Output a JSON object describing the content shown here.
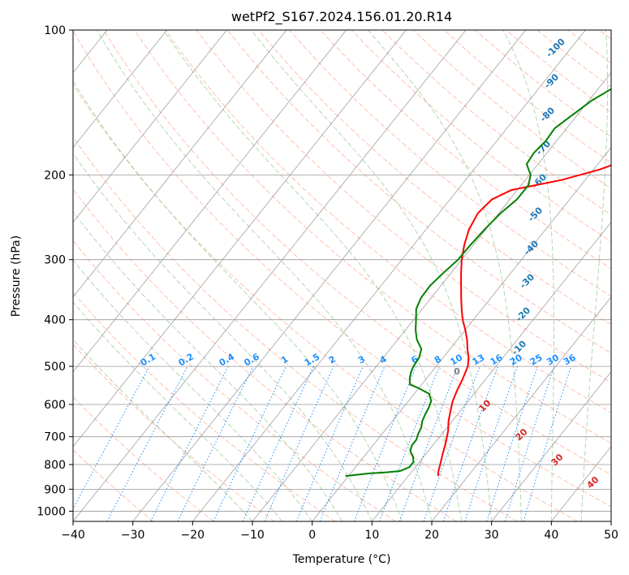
{
  "chart_data": {
    "type": "line",
    "subtype": "skew-T log-P diagram",
    "title": "wetPf2_S167.2024.156.01.20.R14",
    "xlabel": "Temperature (°C)",
    "ylabel": "Pressure (hPa)",
    "xlim": [
      -40,
      50
    ],
    "ylim": [
      1050,
      100
    ],
    "y_scale": "log",
    "x_ticks": [
      "−40",
      "−30",
      "−20",
      "−10",
      "0",
      "10",
      "20",
      "30",
      "40",
      "50"
    ],
    "y_ticks": [
      "100",
      "200",
      "300",
      "400",
      "500",
      "600",
      "700",
      "800",
      "900",
      "1000"
    ],
    "grid": true,
    "colors": {
      "temperature": "#ff0000",
      "dewpoint": "#008000",
      "isotherm": "#808080",
      "dry_adiabat": "#ff8c69",
      "moist_adiabat": "#90c890",
      "mixing_ratio": "#1e90ff",
      "dry_adiabat_label": "#d62728",
      "moist_adiabat_label": "#1f77b4",
      "freezing_label": "#808080"
    },
    "series": [
      {
        "role": "temperature",
        "pressure": [
          845,
          830,
          800,
          760,
          720,
          680,
          650,
          620,
          590,
          560,
          530,
          500,
          480,
          460,
          440,
          420,
          400,
          380,
          360,
          340,
          320,
          300,
          280,
          260,
          240,
          225,
          215,
          210,
          205,
          200,
          195,
          190,
          180,
          170,
          160,
          150,
          140,
          130,
          120,
          110,
          100
        ],
        "temperature": [
          15.0,
          14.5,
          13.8,
          12.8,
          11.8,
          10.6,
          9.4,
          8.4,
          7.4,
          6.7,
          6.1,
          5.3,
          4.3,
          2.9,
          1.6,
          0.0,
          -1.8,
          -3.4,
          -5.0,
          -6.6,
          -8.3,
          -10.0,
          -11.5,
          -12.8,
          -13.5,
          -13.0,
          -11.0,
          -7.5,
          -4.0,
          -1.5,
          1.0,
          2.8,
          5.8,
          9.0,
          12.6,
          16.0,
          18.9,
          21.5,
          23.6,
          28.0,
          33.0
        ]
      },
      {
        "role": "dewpoint",
        "pressure": [
          845,
          835,
          830,
          825,
          810,
          790,
          770,
          750,
          730,
          710,
          690,
          670,
          650,
          630,
          610,
          590,
          570,
          555,
          545,
          530,
          515,
          500,
          480,
          460,
          440,
          420,
          400,
          380,
          360,
          340,
          320,
          300,
          280,
          260,
          240,
          225,
          210,
          200,
          190,
          180,
          170,
          160,
          150,
          140,
          130,
          120,
          110,
          100
        ],
        "dewpoint": [
          -0.5,
          3.0,
          6.0,
          8.0,
          9.0,
          9.0,
          8.2,
          7.0,
          6.5,
          6.5,
          6.0,
          5.7,
          5.0,
          4.6,
          4.3,
          3.8,
          2.5,
          0.0,
          -2.0,
          -2.8,
          -3.4,
          -3.8,
          -4.0,
          -4.8,
          -6.8,
          -8.3,
          -9.6,
          -11.0,
          -11.7,
          -11.8,
          -11.3,
          -10.6,
          -10.5,
          -10.2,
          -9.7,
          -8.8,
          -8.8,
          -9.8,
          -11.9,
          -12.2,
          -11.8,
          -12.0,
          -10.8,
          -9.5,
          -7.2,
          -4.5,
          -3.2,
          0.0
        ]
      }
    ],
    "isotherm_labels_note": "0",
    "dry_adiabat_labels": [
      "10",
      "20",
      "30",
      "40"
    ],
    "moist_adiabat_labels": [
      "-100",
      "-90",
      "-80",
      "-70",
      "-60",
      "-50",
      "-40",
      "-30",
      "-20",
      "-10"
    ],
    "mixing_ratio_labels": [
      "0.1",
      "0.2",
      "0.4",
      "0.6",
      "1",
      "1.5",
      "2",
      "3",
      "4",
      "6",
      "8",
      "10",
      "13",
      "16",
      "20",
      "25",
      "30",
      "36"
    ],
    "freezing_label": "0"
  }
}
